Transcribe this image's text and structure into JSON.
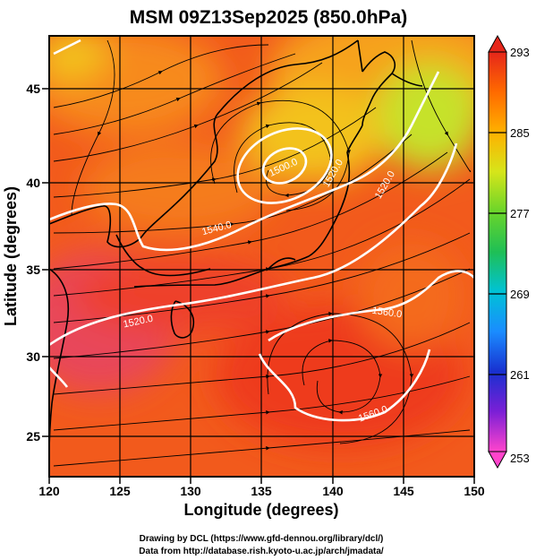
{
  "map": {
    "title": "MSM 09Z13Sep2025 (850.0hPa)",
    "x_axis": {
      "label": "Longitude (degrees)",
      "range": [
        120,
        150
      ],
      "ticks": [
        "120",
        "125",
        "130",
        "135",
        "140",
        "145",
        "150"
      ]
    },
    "y_axis": {
      "label": "Latitude  (degrees)",
      "range": [
        22.5,
        47.5
      ],
      "ticks": [
        "25",
        "30",
        "35",
        "40",
        "45"
      ]
    },
    "colorbar": {
      "min": 253,
      "max": 293,
      "ticks": [
        "293",
        "285",
        "277",
        "269",
        "261",
        "253"
      ],
      "colors": [
        "#ff44cc",
        "#7b1fd6",
        "#1830d0",
        "#1a8cff",
        "#00c2d6",
        "#1fbf55",
        "#6ad52a",
        "#d6e51a",
        "#ffb000",
        "#ff6a00",
        "#e6261a"
      ]
    },
    "contours": {
      "color": "#ffffff",
      "labels": [
        "1500.0",
        "1520.0",
        "1520.0",
        "1540.0",
        "1520.0",
        "1560.0",
        "1560.0"
      ]
    },
    "credits": {
      "line1": "Drawing by DCL (https://www.gfd-dennou.org/library/dcl/)",
      "line2": "Data from http://database.rish.kyoto-u.ac.jp/arch/jmadata/"
    }
  }
}
